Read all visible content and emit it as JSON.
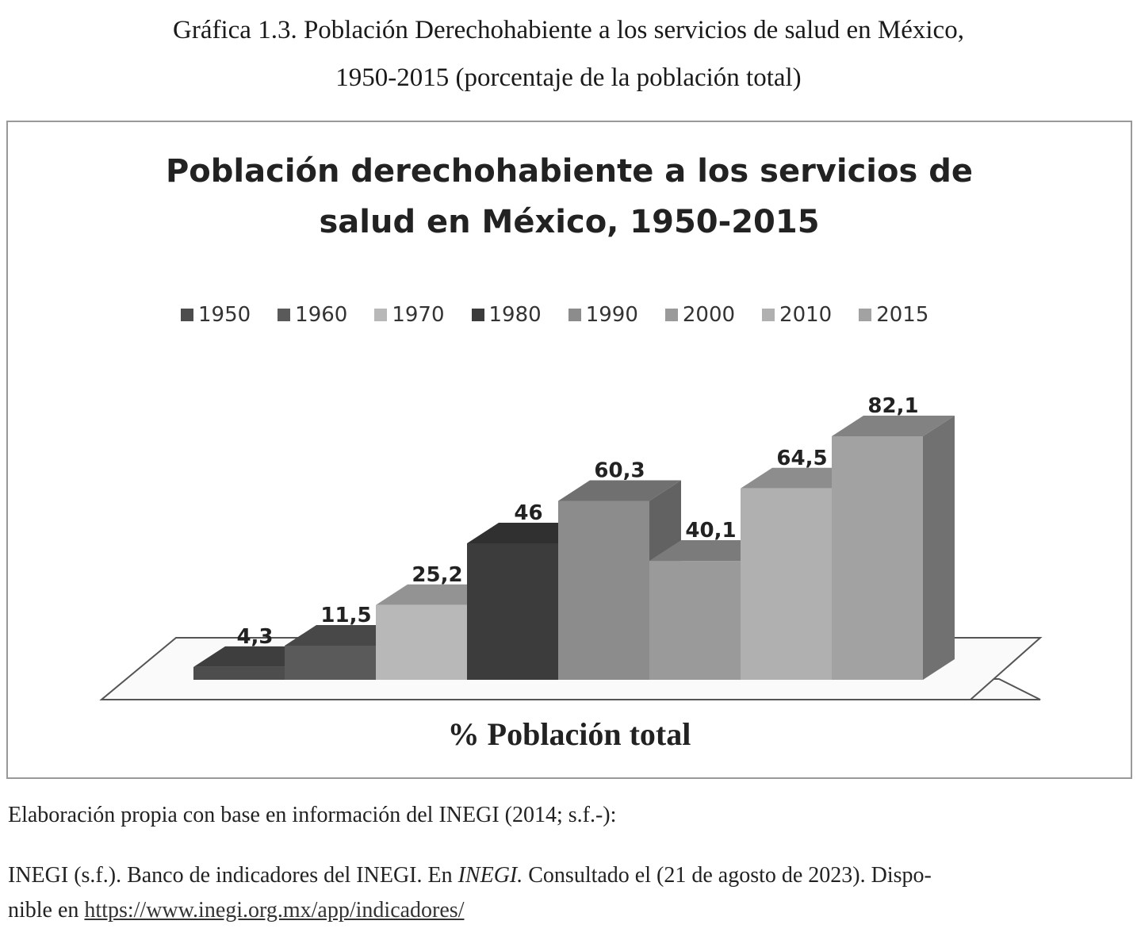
{
  "figure": {
    "title_line1": "Gráfica 1.3. Población Derechohabiente a los servicios de salud en México,",
    "title_line2": "1950-2015 (porcentaje de la población total)"
  },
  "chart_data": {
    "type": "bar",
    "title_line1": "Población derechohabiente a los servicios de",
    "title_line2": "salud en México, 1950-2015",
    "xlabel": "% Población total",
    "ylabel": "",
    "categories": [
      "1950",
      "1960",
      "1970",
      "1980",
      "1990",
      "2000",
      "2010",
      "2015"
    ],
    "values": [
      4.3,
      11.5,
      25.2,
      46,
      60.3,
      40.1,
      64.5,
      82.1
    ],
    "value_labels": [
      "4,3",
      "11,5",
      "25,2",
      "46",
      "60,3",
      "40,1",
      "64,5",
      "82,1"
    ],
    "colors": [
      "#4d4d4d",
      "#5a5a5a",
      "#b8b8b8",
      "#3c3c3c",
      "#8c8c8c",
      "#9a9a9a",
      "#b0b0b0",
      "#a2a2a2"
    ],
    "legend_position": "top",
    "ylim": [
      0,
      90
    ],
    "grid": false
  },
  "notes": {
    "source": "Elaboración propia con base en información del INEGI (2014; s.f.-):",
    "ref_part1": "INEGI (s.f.). Banco de indicadores del INEGI. En ",
    "ref_italic": "INEGI.",
    "ref_part2": " Consultado el (21 de agosto de 2023). Dispo-",
    "ref_line2": "nible en ",
    "link": "https://www.inegi.org.mx/app/indicadores/"
  }
}
